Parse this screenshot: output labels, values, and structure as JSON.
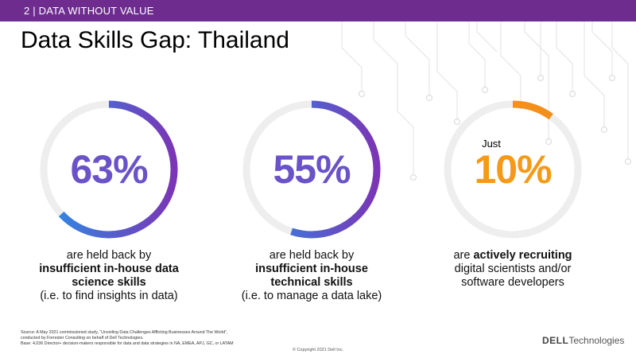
{
  "header": {
    "section_label": "2 | DATA WITHOUT VALUE"
  },
  "title": "Data Skills Gap: Thailand",
  "stats": [
    {
      "value": "63%",
      "fraction": 0.63,
      "lines": [
        {
          "text": "are held back by",
          "bold": false
        },
        {
          "text": "insufficient in-house data",
          "bold": true
        },
        {
          "text": "science skills",
          "bold": true
        },
        {
          "text": "(i.e. to find insights in data)",
          "bold": false
        }
      ]
    },
    {
      "value": "55%",
      "fraction": 0.55,
      "lines": [
        {
          "text": "are held back by",
          "bold": false
        },
        {
          "text": "insufficient in-house",
          "bold": true
        },
        {
          "text": "technical skills",
          "bold": true
        },
        {
          "text": "(i.e. to manage a data lake)",
          "bold": false
        }
      ]
    },
    {
      "prefix": "Just",
      "value": "10%",
      "fraction": 0.1,
      "lines_rich": [
        [
          {
            "text": "are ",
            "bold": false
          },
          {
            "text": "actively recruiting",
            "bold": true
          }
        ],
        [
          {
            "text": "digital scientists and/or",
            "bold": false
          }
        ],
        [
          {
            "text": "software developers",
            "bold": false
          }
        ]
      ]
    }
  ],
  "footer": {
    "source_lines": [
      "Source: A May 2021 commissioned study, “Unveiling Data Challenges Afflicting Businesses Around The World”,",
      "conducted by Forrester Consulting on behalf of Dell Technologies.",
      "Base: 4,036 Director+ decision-makers responsible for data and data strategies in NA, EMEA, APJ, GC, or LATAM"
    ],
    "copyright": "© Copyright 2021 Dell Inc.",
    "logo_bold": "DELL",
    "logo_rest": "Technologies"
  },
  "colors": {
    "header_bg": "#6e2c8f",
    "ring_track": "#eeeeee",
    "gradient_start": "#2a8ee6",
    "gradient_end": "#7b35b5",
    "orange_start": "#f6a817",
    "orange_end": "#f28a1c"
  }
}
